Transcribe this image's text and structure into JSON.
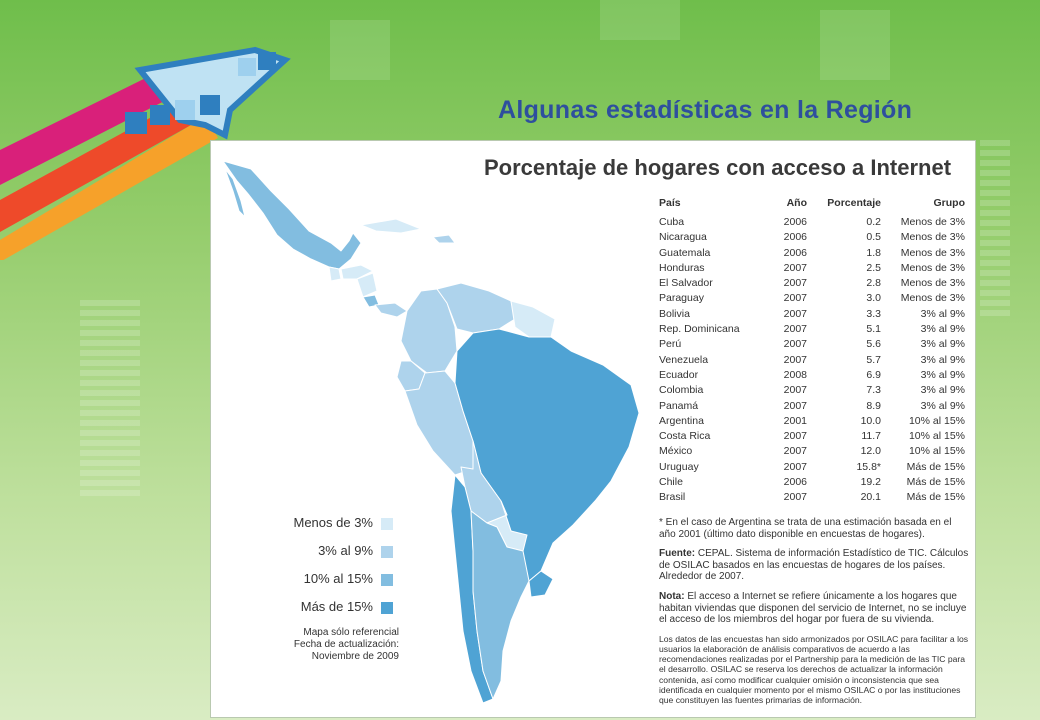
{
  "slide": {
    "title": "Algunas estadísticas en la Región"
  },
  "map": {
    "title": "Porcentaje de hogares con acceso a Internet",
    "legend": [
      {
        "label": "Menos de 3%",
        "color": "#d6ebf7"
      },
      {
        "label": "3% al 9%",
        "color": "#aed3ec"
      },
      {
        "label": "10% al 15%",
        "color": "#82bde0"
      },
      {
        "label": "Más de 15%",
        "color": "#4fa3d4"
      }
    ],
    "note_line1": "Mapa sólo referencial",
    "note_line2": "Fecha de actualización:",
    "note_line3": "Noviembre de 2009"
  },
  "table": {
    "headers": {
      "pais": "País",
      "anio": "Año",
      "porcentaje": "Porcentaje",
      "grupo": "Grupo"
    },
    "rows": [
      {
        "pais": "Cuba",
        "anio": "2006",
        "porcentaje": "0.2",
        "grupo": "Menos de 3%"
      },
      {
        "pais": "Nicaragua",
        "anio": "2006",
        "porcentaje": "0.5",
        "grupo": "Menos de 3%"
      },
      {
        "pais": "Guatemala",
        "anio": "2006",
        "porcentaje": "1.8",
        "grupo": "Menos de 3%"
      },
      {
        "pais": "Honduras",
        "anio": "2007",
        "porcentaje": "2.5",
        "grupo": "Menos de 3%"
      },
      {
        "pais": "El Salvador",
        "anio": "2007",
        "porcentaje": "2.8",
        "grupo": "Menos de 3%"
      },
      {
        "pais": "Paraguay",
        "anio": "2007",
        "porcentaje": "3.0",
        "grupo": "Menos de 3%"
      },
      {
        "pais": "Bolivia",
        "anio": "2007",
        "porcentaje": "3.3",
        "grupo": "3% al 9%"
      },
      {
        "pais": "Rep. Dominicana",
        "anio": "2007",
        "porcentaje": "5.1",
        "grupo": "3% al 9%"
      },
      {
        "pais": "Perú",
        "anio": "2007",
        "porcentaje": "5.6",
        "grupo": "3% al 9%"
      },
      {
        "pais": "Venezuela",
        "anio": "2007",
        "porcentaje": "5.7",
        "grupo": "3% al 9%"
      },
      {
        "pais": "Ecuador",
        "anio": "2008",
        "porcentaje": "6.9",
        "grupo": "3% al 9%"
      },
      {
        "pais": "Colombia",
        "anio": "2007",
        "porcentaje": "7.3",
        "grupo": "3% al 9%"
      },
      {
        "pais": "Panamá",
        "anio": "2007",
        "porcentaje": "8.9",
        "grupo": "3% al 9%"
      },
      {
        "pais": "Argentina",
        "anio": "2001",
        "porcentaje": "10.0",
        "grupo": "10% al 15%"
      },
      {
        "pais": "Costa Rica",
        "anio": "2007",
        "porcentaje": "11.7",
        "grupo": "10% al 15%"
      },
      {
        "pais": "México",
        "anio": "2007",
        "porcentaje": "12.0",
        "grupo": "10% al 15%"
      },
      {
        "pais": "Uruguay",
        "anio": "2007",
        "porcentaje": "15.8*",
        "grupo": "Más de 15%"
      },
      {
        "pais": "Chile",
        "anio": "2006",
        "porcentaje": "19.2",
        "grupo": "Más de 15%"
      },
      {
        "pais": "Brasil",
        "anio": "2007",
        "porcentaje": "20.1",
        "grupo": "Más de 15%"
      }
    ]
  },
  "notes": {
    "asterisk": "* En el caso de Argentina se trata de una estimación basada en el año 2001 (último dato disponible en encuestas de hogares).",
    "fuente_label": "Fuente:",
    "fuente_text": " CEPAL. Sistema de información Estadístico de TIC. Cálculos de OSILAC basados en las encuestas de hogares de los países. Alrededor de 2007.",
    "nota_label": "Nota:",
    "nota_text": " El acceso a Internet se refiere únicamente a los hogares que habitan viviendas que disponen del servicio de Internet, no se incluye el acceso de los miembros del hogar por fuera de su vivienda.",
    "disclaimer": "Los datos de las encuestas han sido armonizados por OSILAC para facilitar a los usuarios la elaboración de análisis comparativos de acuerdo a las recomendaciones realizadas por el Partnership para la medición de las TIC para el desarrollo. OSILAC se reserva los derechos de actualizar la información contenida, así como modificar cualquier omisión o inconsistencia que sea identificada en cualquier momento por el mismo OSILAC o por las instituciones que constituyen las fuentes primarias de información."
  },
  "colors": {
    "title": "#2e4f9e",
    "stripe_magenta": "#d9207a",
    "stripe_red": "#ee4a2a",
    "stripe_orange": "#f6a12a",
    "cursor": "#2f7fbf"
  }
}
